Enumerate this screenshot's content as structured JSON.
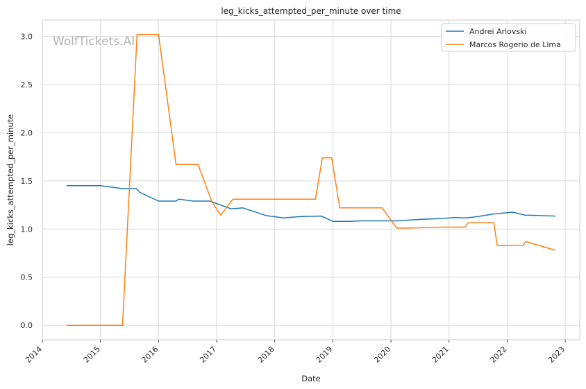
{
  "chart_data": {
    "type": "line",
    "title": "leg_kicks_attempted_per_minute over time",
    "xlabel": "Date",
    "ylabel": "leg_kicks_attempted_per_minute",
    "watermark": "WolfTickets.AI",
    "xlim": [
      2014.0,
      2023.25
    ],
    "ylim": [
      -0.15,
      3.17
    ],
    "x_ticks": [
      2014,
      2015,
      2016,
      2017,
      2018,
      2019,
      2020,
      2021,
      2022,
      2023
    ],
    "x_tick_labels": [
      "2014",
      "2015",
      "2016",
      "2017",
      "2018",
      "2019",
      "2020",
      "2021",
      "2022",
      "2023"
    ],
    "y_ticks": [
      0.0,
      0.5,
      1.0,
      1.5,
      2.0,
      2.5,
      3.0
    ],
    "y_tick_labels": [
      "0.0",
      "0.5",
      "1.0",
      "1.5",
      "2.0",
      "2.5",
      "3.0"
    ],
    "grid": true,
    "legend_position": "top-right",
    "series": [
      {
        "name": "Andrei Arlovski",
        "color": "#1f77b4",
        "points": [
          [
            2014.42,
            1.45
          ],
          [
            2015.0,
            1.45
          ],
          [
            2015.38,
            1.42
          ],
          [
            2015.62,
            1.42
          ],
          [
            2015.68,
            1.38
          ],
          [
            2016.0,
            1.29
          ],
          [
            2016.3,
            1.29
          ],
          [
            2016.35,
            1.31
          ],
          [
            2016.6,
            1.29
          ],
          [
            2016.88,
            1.29
          ],
          [
            2017.25,
            1.21
          ],
          [
            2017.45,
            1.22
          ],
          [
            2017.85,
            1.14
          ],
          [
            2018.15,
            1.115
          ],
          [
            2018.45,
            1.13
          ],
          [
            2018.8,
            1.135
          ],
          [
            2019.0,
            1.08
          ],
          [
            2019.3,
            1.08
          ],
          [
            2019.5,
            1.085
          ],
          [
            2020.1,
            1.085
          ],
          [
            2020.5,
            1.1
          ],
          [
            2020.9,
            1.11
          ],
          [
            2021.1,
            1.12
          ],
          [
            2021.3,
            1.115
          ],
          [
            2021.5,
            1.13
          ],
          [
            2021.75,
            1.155
          ],
          [
            2022.1,
            1.175
          ],
          [
            2022.3,
            1.145
          ],
          [
            2022.83,
            1.135
          ]
        ]
      },
      {
        "name": "Marcos Rogerio de Lima",
        "color": "#ff7f0e",
        "points": [
          [
            2014.42,
            0.0
          ],
          [
            2015.38,
            0.0
          ],
          [
            2015.63,
            3.02
          ],
          [
            2016.0,
            3.02
          ],
          [
            2016.3,
            1.67
          ],
          [
            2016.68,
            1.67
          ],
          [
            2016.92,
            1.28
          ],
          [
            2017.07,
            1.145
          ],
          [
            2017.28,
            1.31
          ],
          [
            2018.7,
            1.31
          ],
          [
            2018.82,
            1.74
          ],
          [
            2018.98,
            1.74
          ],
          [
            2019.12,
            1.22
          ],
          [
            2019.85,
            1.22
          ],
          [
            2020.1,
            1.01
          ],
          [
            2020.3,
            1.01
          ],
          [
            2020.9,
            1.02
          ],
          [
            2021.28,
            1.02
          ],
          [
            2021.33,
            1.065
          ],
          [
            2021.77,
            1.065
          ],
          [
            2021.83,
            0.83
          ],
          [
            2022.28,
            0.83
          ],
          [
            2022.32,
            0.87
          ],
          [
            2022.83,
            0.78
          ]
        ]
      }
    ]
  }
}
